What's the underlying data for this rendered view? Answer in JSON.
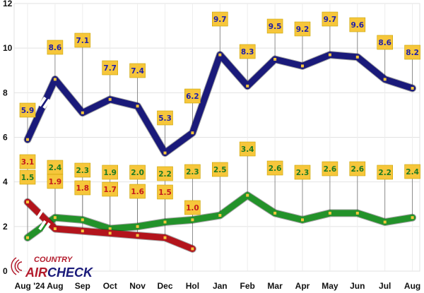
{
  "chart_data": {
    "type": "line",
    "title": "",
    "xlabel": "",
    "ylabel": "",
    "ylim": [
      0,
      12
    ],
    "yticks": [
      0,
      2,
      4,
      6,
      8,
      10,
      12
    ],
    "grid": true,
    "categories": [
      "Aug '24",
      "Aug",
      "Sep",
      "Oct",
      "Nov",
      "Dec",
      "Hol",
      "Jan",
      "Feb",
      "Mar",
      "Apr",
      "May",
      "Jun",
      "Jul",
      "Aug"
    ],
    "series": [
      {
        "color": "#1a1a7a",
        "label_color": "#1f1fa8",
        "values": [
          5.9,
          8.6,
          7.1,
          7.7,
          7.4,
          5.3,
          6.2,
          9.7,
          8.3,
          9.5,
          9.2,
          9.7,
          9.6,
          8.6,
          8.2
        ]
      },
      {
        "color": "#23922a",
        "label_color": "#1d7a22",
        "values": [
          1.5,
          2.4,
          2.3,
          1.9,
          2.0,
          2.2,
          2.3,
          2.5,
          3.4,
          2.6,
          2.3,
          2.6,
          2.6,
          2.2,
          2.4
        ]
      },
      {
        "color": "#b3141c",
        "label_color": "#c41a1a",
        "values": [
          3.1,
          1.9,
          1.8,
          1.7,
          1.6,
          1.5,
          1.0,
          null,
          null,
          null,
          null,
          null,
          null,
          null,
          null
        ]
      }
    ],
    "label_fill": "#f6c63b"
  },
  "logo": {
    "line1": "COUNTRY",
    "line2a": "AIR",
    "line2b": "CHECK"
  }
}
